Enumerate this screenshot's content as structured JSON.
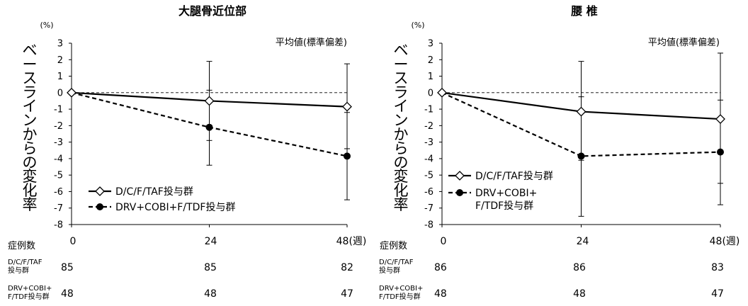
{
  "chart_data": [
    {
      "type": "line",
      "title": "大腿骨近位部",
      "unit_label": "(%)",
      "ylabel": "ベースラインからの変化率",
      "note": "平均値(標準偏差)",
      "ylim": [
        -8,
        3
      ],
      "yticks": [
        3,
        2,
        1,
        0,
        -1,
        -2,
        -3,
        -4,
        -5,
        -6,
        -7,
        -8
      ],
      "x": [
        0,
        24,
        48
      ],
      "xtick_labels": [
        "0",
        "24",
        "48(週)"
      ],
      "baseline_dashed": 0,
      "legend_placement": "lower-left",
      "series": [
        {
          "name": "D/C/F/TAF投与群",
          "marker": "diamond-open",
          "line": "solid",
          "values": [
            0,
            -0.5,
            -0.85
          ],
          "error_lower": [
            0,
            -2.9,
            -3.4
          ],
          "error_upper": [
            0,
            1.9,
            1.75
          ],
          "n_label": "D/C/F/TAF投与群",
          "n": [
            "85",
            "85",
            "82"
          ]
        },
        {
          "name": "DRV+COBI+F/TDF投与群",
          "marker": "circle-filled",
          "line": "dashed",
          "values": [
            0,
            -2.1,
            -3.85
          ],
          "error_lower": [
            0,
            -4.4,
            -6.5
          ],
          "error_upper": [
            0,
            0.15,
            -1.2
          ],
          "n_label": "DRV+COBI+F/TDF投与群",
          "n": [
            "48",
            "48",
            "47"
          ]
        }
      ],
      "n_header": "症例数"
    },
    {
      "type": "line",
      "title": "腰 椎",
      "unit_label": "(%)",
      "ylabel": "ベースラインからの変化率",
      "note": "平均値(標準偏差)",
      "ylim": [
        -8,
        3
      ],
      "yticks": [
        3,
        2,
        1,
        0,
        -1,
        -2,
        -3,
        -4,
        -5,
        -6,
        -7,
        -8
      ],
      "x": [
        0,
        24,
        48
      ],
      "xtick_labels": [
        "0",
        "24",
        "48(週)"
      ],
      "baseline_dashed": 0,
      "legend_placement": "lower-left",
      "series": [
        {
          "name": "D/C/F/TAF投与群",
          "marker": "diamond-open",
          "line": "solid",
          "values": [
            0,
            -1.15,
            -1.6
          ],
          "error_lower": [
            0,
            -4.1,
            -5.5
          ],
          "error_upper": [
            0,
            1.9,
            2.4
          ],
          "n_label": "D/C/F/TAF投与群",
          "n": [
            "86",
            "86",
            "83"
          ]
        },
        {
          "name": "DRV+COBI+F/TDF投与群",
          "legend_lines": [
            "DRV+COBI+",
            "F/TDF投与群"
          ],
          "marker": "circle-filled",
          "line": "dashed",
          "values": [
            0,
            -3.85,
            -3.6
          ],
          "error_lower": [
            0,
            -7.5,
            -6.8
          ],
          "error_upper": [
            0,
            -0.25,
            -0.45
          ],
          "n_label": "DRV+COBI+F/TDF投与群",
          "n": [
            "48",
            "48",
            "47"
          ]
        }
      ],
      "n_header": "症例数"
    }
  ]
}
